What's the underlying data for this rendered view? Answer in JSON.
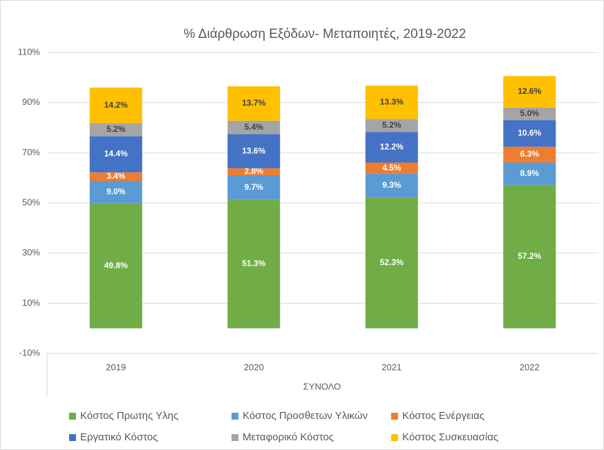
{
  "chart_data": {
    "type": "stacked_bar",
    "title": "% Διάρθρωση  Εξόδων- Μεταποιητές, 2019-2022",
    "x_label": "ΣΥΝΟΛΟ",
    "categories": [
      "2019",
      "2020",
      "2021",
      "2022"
    ],
    "ylim": [
      -10,
      110
    ],
    "yticks": [
      {
        "value": -10,
        "label": "-10%"
      },
      {
        "value": 10,
        "label": "10%"
      },
      {
        "value": 30,
        "label": "30%"
      },
      {
        "value": 50,
        "label": "50%"
      },
      {
        "value": 70,
        "label": "70%"
      },
      {
        "value": 90,
        "label": "90%"
      },
      {
        "value": 110,
        "label": "110%"
      }
    ],
    "grid": true,
    "legend": "bottom",
    "series": [
      {
        "name": "Κόστος Πρωτης Υλης",
        "color": "#70ad47",
        "values": [
          49.8,
          51.3,
          52.3,
          57.2
        ],
        "value_labels": [
          "49.8%",
          "51.3%",
          "52.3%",
          "57.2%"
        ]
      },
      {
        "name": "Κόστος Προσθετων Υλικών",
        "color": "#5b9bd5",
        "values": [
          9.0,
          9.7,
          9.3,
          8.9
        ],
        "value_labels": [
          "9.0%",
          "9.7%",
          "9.3%",
          "8.9%"
        ]
      },
      {
        "name": "Κόστος Ενέργειας",
        "color": "#ed7d31",
        "values": [
          3.4,
          2.8,
          4.5,
          6.3
        ],
        "value_labels": [
          "3.4%",
          "2.8%",
          "4.5%",
          "6.3%"
        ]
      },
      {
        "name": "Εργατικό Κόστος",
        "color": "#4472c4",
        "values": [
          14.4,
          13.6,
          12.2,
          10.6
        ],
        "value_labels": [
          "14.4%",
          "13.6%",
          "12.2%",
          "10.6%"
        ]
      },
      {
        "name": "Μεταφορικό Κόστος",
        "color": "#a5a5a5",
        "values": [
          5.2,
          5.4,
          5.2,
          5.0
        ],
        "value_labels": [
          "5.2%",
          "5.4%",
          "5.2%",
          "5.0%"
        ]
      },
      {
        "name": "Κόστος Συσκευασίας",
        "color": "#ffc000",
        "values": [
          14.2,
          13.7,
          13.3,
          12.6
        ],
        "value_labels": [
          "14.2%",
          "13.7%",
          "13.3%",
          "12.6%"
        ]
      }
    ]
  }
}
